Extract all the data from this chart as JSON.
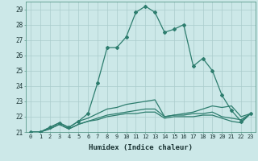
{
  "xlabel": "Humidex (Indice chaleur)",
  "background_color": "#cce8e8",
  "line_color": "#2d7d6e",
  "grid_color": "#aacccc",
  "xlim": [
    -0.5,
    23.5
  ],
  "ylim": [
    21,
    29.5
  ],
  "yticks": [
    21,
    22,
    23,
    24,
    25,
    26,
    27,
    28,
    29
  ],
  "xticks": [
    0,
    1,
    2,
    3,
    4,
    5,
    6,
    7,
    8,
    9,
    10,
    11,
    12,
    13,
    14,
    15,
    16,
    17,
    18,
    19,
    20,
    21,
    22,
    23
  ],
  "series": [
    [
      21.0,
      21.0,
      21.3,
      21.6,
      21.3,
      21.7,
      22.2,
      24.2,
      26.5,
      26.5,
      27.2,
      28.8,
      29.2,
      28.8,
      27.5,
      27.7,
      28.0,
      25.3,
      25.8,
      25.0,
      23.4,
      22.4,
      21.7,
      22.2
    ],
    [
      21.0,
      21.0,
      21.3,
      21.6,
      21.3,
      21.7,
      21.9,
      22.2,
      22.5,
      22.6,
      22.8,
      22.9,
      23.0,
      23.1,
      22.0,
      22.1,
      22.2,
      22.3,
      22.5,
      22.7,
      22.6,
      22.7,
      22.0,
      22.2
    ],
    [
      21.0,
      21.0,
      21.2,
      21.5,
      21.2,
      21.5,
      21.7,
      21.9,
      22.1,
      22.2,
      22.3,
      22.4,
      22.5,
      22.5,
      22.0,
      22.1,
      22.1,
      22.2,
      22.2,
      22.3,
      22.0,
      21.9,
      21.8,
      22.2
    ],
    [
      21.0,
      21.0,
      21.2,
      21.5,
      21.2,
      21.5,
      21.7,
      21.8,
      22.0,
      22.1,
      22.2,
      22.2,
      22.3,
      22.3,
      21.9,
      22.0,
      22.0,
      22.0,
      22.1,
      22.1,
      21.9,
      21.7,
      21.6,
      22.2
    ]
  ],
  "markers": [
    true,
    false,
    false,
    false
  ]
}
